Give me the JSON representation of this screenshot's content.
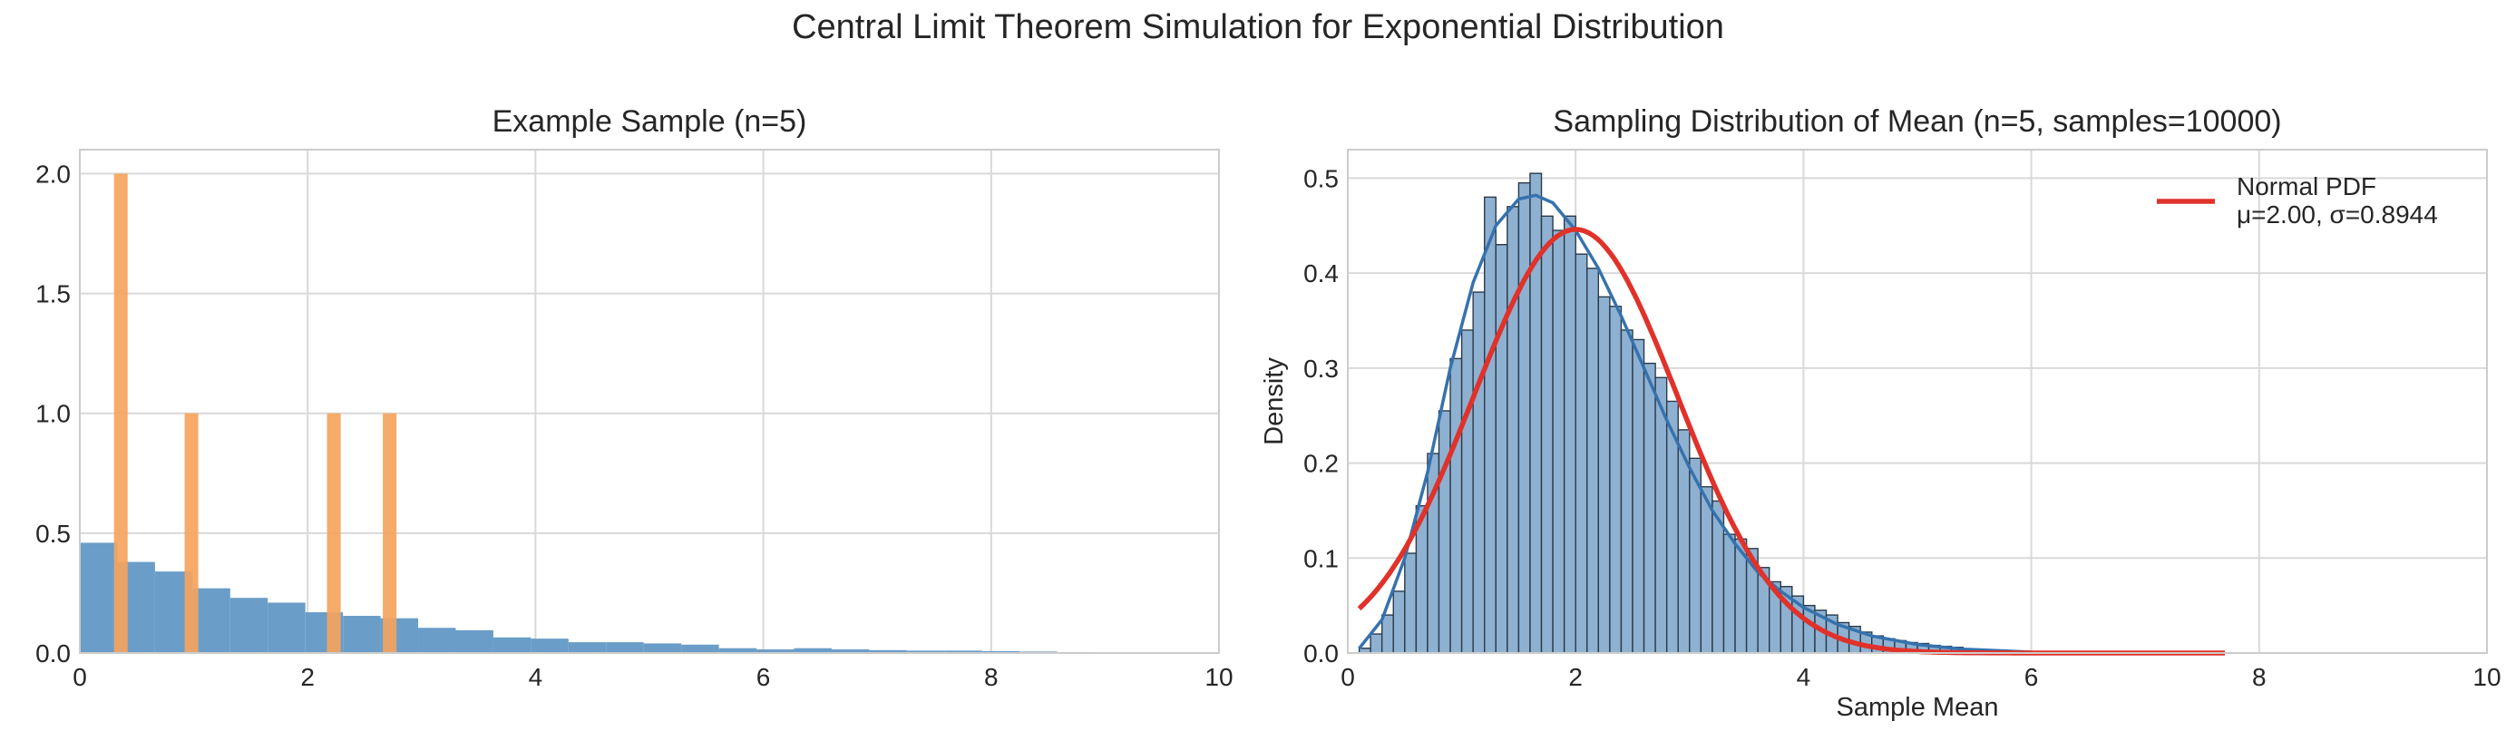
{
  "figure": {
    "suptitle": "Central Limit Theorem Simulation for Exponential Distribution"
  },
  "colors": {
    "population_hist": "#6a9dc8",
    "sample_bars": "#f5a45e",
    "sampling_hist_fill": "#8fb1d1",
    "sampling_hist_edge": "#2a3a4a",
    "kde_line": "#3572ae",
    "normal_pdf": "#e0322a",
    "grid": "#d9d9d9",
    "axes_edge": "#cccccc"
  },
  "chart_data": [
    {
      "type": "bar",
      "title": "Example Sample (n=5)",
      "xlabel": "",
      "ylabel": "",
      "xlim": [
        0,
        10
      ],
      "ylim": [
        0,
        2.1
      ],
      "xticks": [
        0,
        2,
        4,
        6,
        8,
        10
      ],
      "yticks": [
        0.0,
        0.5,
        1.0,
        1.5,
        2.0
      ],
      "ytick_labels": [
        "0.0",
        "0.5",
        "1.0",
        "1.5",
        "2.0"
      ],
      "grid": true,
      "population_histogram": {
        "bin_edges": [
          0.0,
          0.33,
          0.66,
          0.99,
          1.32,
          1.65,
          1.98,
          2.31,
          2.64,
          2.97,
          3.3,
          3.63,
          3.96,
          4.29,
          4.62,
          4.95,
          5.28,
          5.61,
          5.94,
          6.27,
          6.6,
          6.93,
          7.26,
          7.59,
          7.92,
          8.25,
          8.58,
          8.91,
          9.24,
          9.57,
          9.9
        ],
        "densities": [
          0.46,
          0.38,
          0.34,
          0.27,
          0.23,
          0.21,
          0.17,
          0.155,
          0.145,
          0.105,
          0.095,
          0.065,
          0.06,
          0.045,
          0.045,
          0.04,
          0.035,
          0.02,
          0.015,
          0.02,
          0.015,
          0.012,
          0.01,
          0.01,
          0.008,
          0.006,
          0.004,
          0.0,
          0.003,
          0.002
        ]
      },
      "sample_bars": {
        "width": 0.12,
        "x": [
          0.36,
          0.98,
          2.23,
          2.72
        ],
        "heights": [
          2.0,
          1.0,
          1.0,
          1.0
        ]
      }
    },
    {
      "type": "bar",
      "title": "Sampling Distribution of Mean (n=5, samples=10000)",
      "xlabel": "Sample Mean",
      "ylabel": "Density",
      "xlim": [
        0,
        10
      ],
      "ylim": [
        0,
        0.53
      ],
      "xticks": [
        0,
        2,
        4,
        6,
        8,
        10
      ],
      "yticks": [
        0.0,
        0.1,
        0.2,
        0.3,
        0.4,
        0.5
      ],
      "ytick_labels": [
        "0.0",
        "0.1",
        "0.2",
        "0.3",
        "0.4",
        "0.5"
      ],
      "grid": true,
      "legend_position": "top-right",
      "legend": [
        "Normal PDF",
        "μ=2.00, σ=0.8944"
      ],
      "histogram": {
        "start": 0.1,
        "bin_width": 0.1,
        "densities": [
          0.005,
          0.02,
          0.04,
          0.065,
          0.105,
          0.155,
          0.21,
          0.255,
          0.31,
          0.34,
          0.38,
          0.48,
          0.43,
          0.47,
          0.495,
          0.505,
          0.46,
          0.445,
          0.46,
          0.42,
          0.405,
          0.375,
          0.365,
          0.34,
          0.33,
          0.305,
          0.29,
          0.265,
          0.235,
          0.205,
          0.175,
          0.16,
          0.125,
          0.12,
          0.11,
          0.09,
          0.075,
          0.07,
          0.06,
          0.05,
          0.045,
          0.04,
          0.032,
          0.028,
          0.022,
          0.018,
          0.015,
          0.013,
          0.011,
          0.01,
          0.008,
          0.007,
          0.006,
          0.004,
          0.003,
          0.002,
          0.002,
          0.001
        ]
      },
      "kde_curve": {
        "x": [
          0.1,
          0.3,
          0.5,
          0.7,
          0.9,
          1.1,
          1.3,
          1.5,
          1.65,
          1.8,
          2.0,
          2.2,
          2.4,
          2.6,
          2.8,
          3.0,
          3.2,
          3.4,
          3.6,
          3.8,
          4.0,
          4.3,
          4.6,
          5.0,
          5.4,
          5.8,
          6.0
        ],
        "y": [
          0.005,
          0.035,
          0.1,
          0.19,
          0.3,
          0.39,
          0.45,
          0.478,
          0.482,
          0.474,
          0.445,
          0.405,
          0.355,
          0.3,
          0.245,
          0.195,
          0.15,
          0.115,
          0.085,
          0.065,
          0.048,
          0.03,
          0.018,
          0.009,
          0.004,
          0.002,
          0.001
        ]
      },
      "normal_pdf": {
        "mu": 2.0,
        "sigma": 0.8944,
        "x_range": [
          0.1,
          7.7
        ]
      }
    }
  ]
}
